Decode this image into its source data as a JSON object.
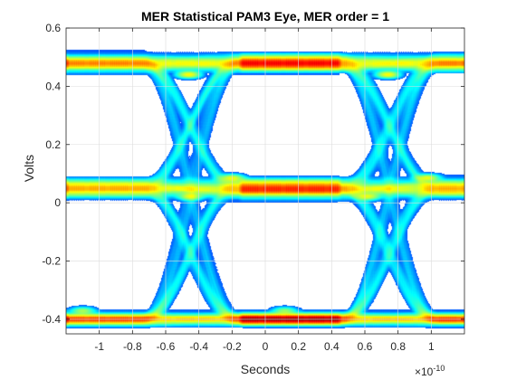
{
  "chart_data": {
    "type": "heatmap",
    "title": "MER Statistical PAM3 Eye, MER order = 1",
    "xlabel": "Seconds",
    "ylabel": "Volts",
    "x_exponent_base": "×10",
    "x_exponent_power": "-10",
    "xlim": [
      -1.2,
      1.2
    ],
    "ylim": [
      -0.45,
      0.6
    ],
    "xticks": [
      -1,
      -0.8,
      -0.6,
      -0.4,
      -0.2,
      0,
      0.2,
      0.4,
      0.6,
      0.8,
      1
    ],
    "xtick_labels": [
      "-1",
      "-0.8",
      "-0.6",
      "-0.4",
      "-0.2",
      "0",
      "0.2",
      "0.4",
      "0.6",
      "0.8",
      "1"
    ],
    "yticks": [
      -0.4,
      -0.2,
      0,
      0.2,
      0.4,
      0.6
    ],
    "ytick_labels": [
      "-0.4",
      "-0.2",
      "0",
      "0.2",
      "0.4",
      "0.6"
    ],
    "grid": true,
    "colormap": "jet",
    "unit_interval": 1.2,
    "levels": [
      -0.4,
      0.05,
      0.48
    ],
    "level_spread": [
      0.035,
      0.055,
      0.05
    ],
    "crossing_times": [
      -0.45,
      0.75
    ],
    "transition_rise_time": 0.55,
    "hot_spots": [
      {
        "x": -0.46,
        "y": 0.44,
        "intensity": 1.0
      },
      {
        "x": 0.74,
        "y": 0.44,
        "intensity": 1.0
      },
      {
        "x": -0.2,
        "y": 0.085,
        "intensity": 0.8
      },
      {
        "x": 0.98,
        "y": 0.085,
        "intensity": 0.8
      },
      {
        "x": -0.45,
        "y": 0.02,
        "intensity": 0.7
      },
      {
        "x": 0.62,
        "y": 0.02,
        "intensity": 0.7
      },
      {
        "x": -1.1,
        "y": -0.37,
        "intensity": 0.6
      },
      {
        "x": 0.12,
        "y": -0.37,
        "intensity": 0.55
      }
    ]
  }
}
